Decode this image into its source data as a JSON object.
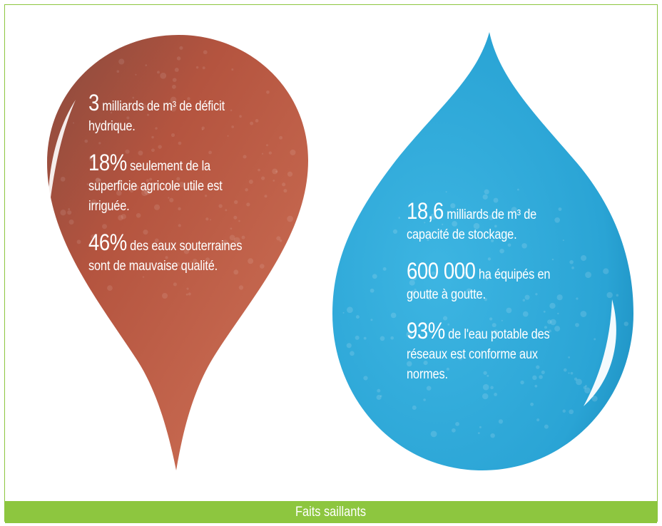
{
  "colors": {
    "accent_green": "#8dc63f",
    "red_drop": "#c4604a",
    "blue_drop": "#29a6d6"
  },
  "left_drop": {
    "facts": [
      {
        "figure": "3",
        "text": "milliards de m³ de déficit hydrique."
      },
      {
        "figure": "18%",
        "text": "seulement de la superficie agricole utile est irriguée."
      },
      {
        "figure": "46%",
        "text": "des eaux souterraines sont de mauvaise qualité."
      }
    ]
  },
  "right_drop": {
    "facts": [
      {
        "figure": "18,6",
        "text": "milliards de m³ de capacité de stockage."
      },
      {
        "figure": "600 000",
        "text": "ha équipés en goutte à goutte."
      },
      {
        "figure": "93%",
        "text": "de l'eau potable des réseaux est conforme aux normes."
      }
    ]
  },
  "footer": {
    "title": "Faits saillants"
  }
}
